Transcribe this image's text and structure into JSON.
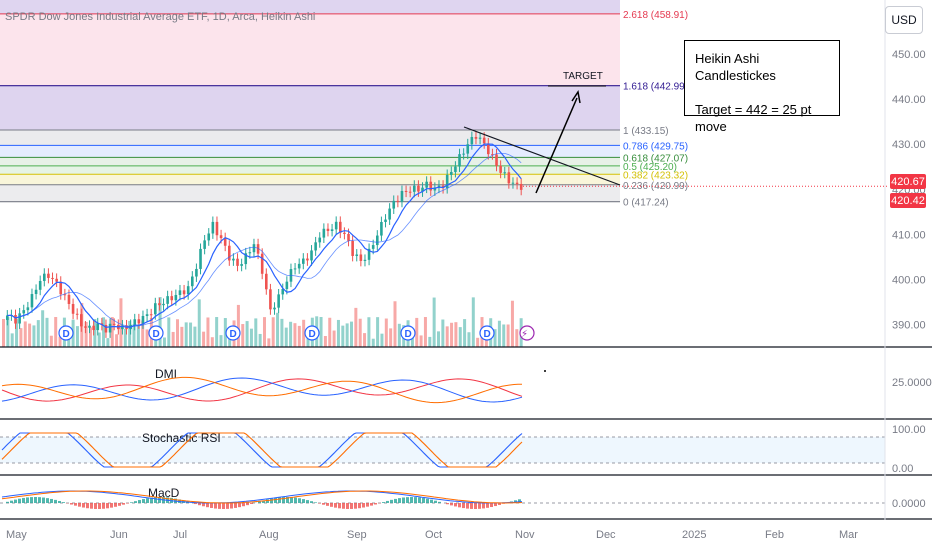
{
  "header": {
    "symbol_title": "SPDR Dow Jones Industrial Average ETF, 1D, Arca, Heikin Ashi",
    "currency_button": "USD"
  },
  "annotation": {
    "line1": "Heikin Ashi Candlestickes",
    "line2": "Target = 442 = 25 pt move",
    "target_label": "TARGET"
  },
  "fib_levels": [
    {
      "ratio": "2.618",
      "price": 458.91,
      "label": "2.618 (458.91)",
      "color": "#e53950"
    },
    {
      "ratio": "1.618",
      "price": 442.99,
      "label": "1.618 (442.99)",
      "color": "#311b92"
    },
    {
      "ratio": "1",
      "price": 433.15,
      "label": "1 (433.15)",
      "color": "#787b86"
    },
    {
      "ratio": "0.786",
      "price": 429.75,
      "label": "0.786 (429.75)",
      "color": "#2962ff"
    },
    {
      "ratio": "0.618",
      "price": 427.07,
      "label": "0.618 (427.07)",
      "color": "#388e3c"
    },
    {
      "ratio": "0.5",
      "price": 425.2,
      "label": "0.5 (425.20)",
      "color": "#4caf50"
    },
    {
      "ratio": "0.382",
      "price": 423.32,
      "label": "0.382 (423.32)",
      "color": "#d4c106"
    },
    {
      "ratio": "0.236",
      "price": 420.99,
      "label": "0.236 (420.99)",
      "color": "#787b86"
    },
    {
      "ratio": "0",
      "price": 417.24,
      "label": "0 (417.24)",
      "color": "#787b86"
    }
  ],
  "price_tags": {
    "current": "420.67",
    "close": "420.42",
    "color": "#f23645"
  },
  "indicators": {
    "dmi_label": "DMI",
    "dmi_value": "25.0000",
    "stoch_label": "Stochastic RSI",
    "stoch_upper": "100.00",
    "stoch_lower": "0.00",
    "macd_label": "MacD",
    "macd_value": "0.0000"
  },
  "event_markers": {
    "dividend": "D",
    "lightning": "⚡"
  },
  "chart_data": {
    "type": "candlestick",
    "style": "Heikin Ashi",
    "title": "SPDR Dow Jones Industrial Average ETF, 1D, Arca, Heikin Ashi",
    "y_axis_ticks": [
      "450.00",
      "440.00",
      "430.00",
      "420.00",
      "410.00",
      "400.00",
      "390.00"
    ],
    "x_axis_ticks": [
      "May",
      "Jun",
      "Jul",
      "Aug",
      "Sep",
      "Oct",
      "Nov",
      "Dec",
      "2025",
      "Feb",
      "Mar"
    ],
    "ylim": [
      385,
      462
    ],
    "up_color": "#26a69a",
    "down_color": "#ef5350",
    "price_path": [
      [
        "May",
        392
      ],
      [
        "May",
        391
      ],
      [
        "May",
        393
      ],
      [
        "May",
        396
      ],
      [
        "May",
        400
      ],
      [
        "May",
        401
      ],
      [
        "May",
        399
      ],
      [
        "May",
        396
      ],
      [
        "May",
        393
      ],
      [
        "May",
        390
      ],
      [
        "Jun",
        389
      ],
      [
        "Jun",
        390
      ],
      [
        "Jun",
        389
      ],
      [
        "Jun",
        390
      ],
      [
        "Jun",
        389
      ],
      [
        "Jun",
        390
      ],
      [
        "Jun",
        391
      ],
      [
        "Jun",
        392
      ],
      [
        "Jun",
        394
      ],
      [
        "Jun",
        395
      ],
      [
        "Jul",
        396
      ],
      [
        "Jul",
        397
      ],
      [
        "Jul",
        398
      ],
      [
        "Jul",
        403
      ],
      [
        "Jul",
        409
      ],
      [
        "Jul",
        412
      ],
      [
        "Jul",
        409
      ],
      [
        "Jul",
        405
      ],
      [
        "Jul",
        403
      ],
      [
        "Jul",
        405
      ],
      [
        "Aug",
        408
      ],
      [
        "Aug",
        402
      ],
      [
        "Aug",
        393
      ],
      [
        "Aug",
        396
      ],
      [
        "Aug",
        400
      ],
      [
        "Aug",
        403
      ],
      [
        "Aug",
        404
      ],
      [
        "Aug",
        406
      ],
      [
        "Aug",
        410
      ],
      [
        "Aug",
        411
      ],
      [
        "Sep",
        412
      ],
      [
        "Sep",
        410
      ],
      [
        "Sep",
        406
      ],
      [
        "Sep",
        404
      ],
      [
        "Sep",
        406
      ],
      [
        "Sep",
        410
      ],
      [
        "Sep",
        414
      ],
      [
        "Sep",
        417
      ],
      [
        "Sep",
        419
      ],
      [
        "Sep",
        420
      ],
      [
        "Oct",
        420
      ],
      [
        "Oct",
        421
      ],
      [
        "Oct",
        420
      ],
      [
        "Oct",
        421
      ],
      [
        "Oct",
        424
      ],
      [
        "Oct",
        427
      ],
      [
        "Oct",
        430
      ],
      [
        "Oct",
        432
      ],
      [
        "Oct",
        430
      ],
      [
        "Oct",
        427
      ],
      [
        "Nov",
        424
      ],
      [
        "Nov",
        422
      ],
      [
        "Nov",
        420.67
      ]
    ],
    "dmi": {
      "reference": 25.0
    },
    "stochastic_rsi": {
      "upper": 100,
      "lower": 0
    },
    "macd": {
      "zero": 0
    }
  }
}
